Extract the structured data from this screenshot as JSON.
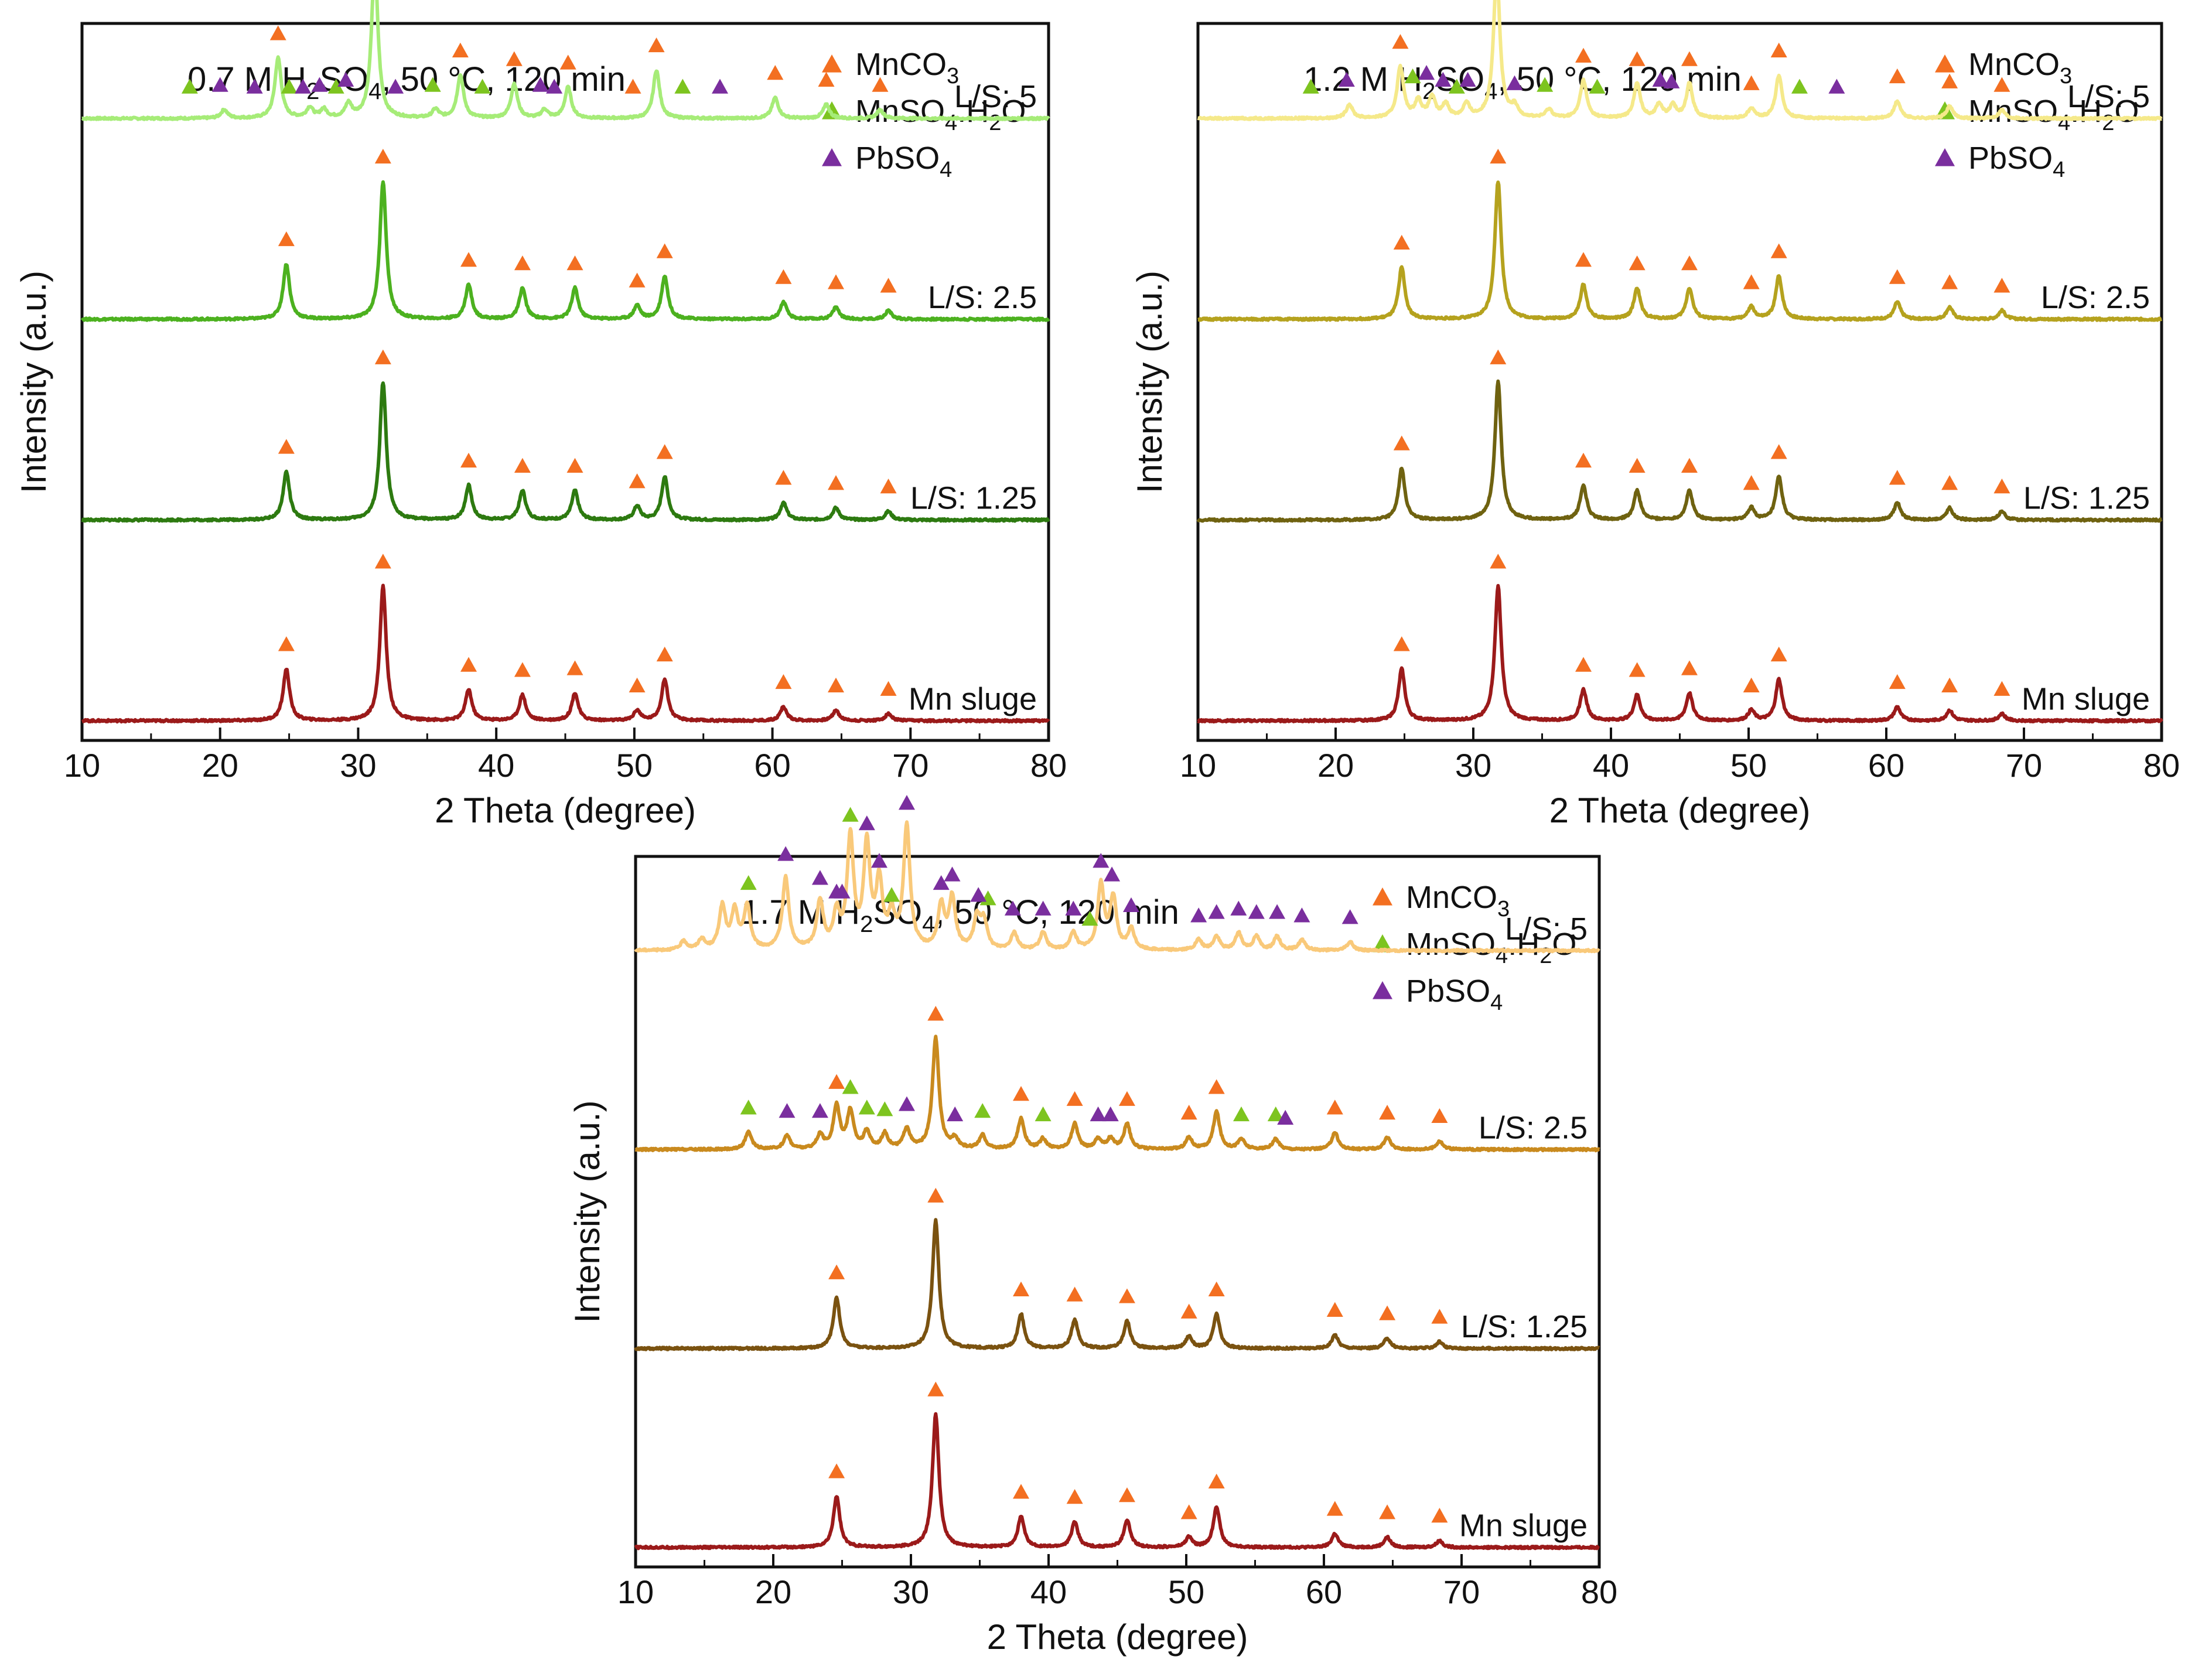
{
  "figure": {
    "description_hidden": false
  },
  "phases": [
    {
      "key": "mnco3",
      "label_main": "MnCO",
      "label_sub": "3",
      "label_rest": "",
      "color": "#F36F21"
    },
    {
      "key": "mnso4",
      "label_main": "MnSO",
      "label_sub": "4",
      "label_rest": ".H",
      "label_sub2": "2",
      "label_tail": "O",
      "color": "#7DC41F"
    },
    {
      "key": "pbso4",
      "label_main": "PbSO",
      "label_sub": "4",
      "label_rest": "",
      "color": "#7A2E9E"
    }
  ],
  "chart_data": [
    {
      "type": "line",
      "title_parts": [
        "0.7 M H",
        "2",
        "SO",
        "4",
        ", 50 °C, 120 min"
      ],
      "xlabel": "2 Theta (degree)",
      "ylabel": "Intensity (a.u.)",
      "xlim": [
        10,
        80
      ],
      "xticks": [
        "10",
        "20",
        "30",
        "40",
        "50",
        "60",
        "70",
        "80"
      ],
      "series": [
        {
          "name": "L/S: 5",
          "color": "#A6EC78",
          "peaks": [
            [
              24.2,
              0.35
            ],
            [
              31.2,
              0.9
            ],
            [
              37.4,
              0.25
            ],
            [
              41.3,
              0.2
            ],
            [
              45.2,
              0.18
            ],
            [
              51.6,
              0.28
            ],
            [
              60.2,
              0.12
            ],
            [
              63.9,
              0.08
            ],
            [
              67.8,
              0.05
            ],
            [
              20.3,
              0.05
            ],
            [
              26.5,
              0.06
            ],
            [
              27.5,
              0.05
            ],
            [
              29.3,
              0.08
            ],
            [
              43.5,
              0.05
            ],
            [
              35.6,
              0.05
            ]
          ],
          "markers": {
            "mnco3": [
              24.2,
              31.2,
              37.4,
              41.3,
              45.2,
              49.9,
              51.6,
              60.2,
              63.9,
              67.8
            ],
            "mnso4": [
              17.8,
              25.0,
              28.4,
              35.4,
              39.0,
              53.5
            ],
            "pbso4": [
              20.0,
              22.5,
              26.0,
              27.2,
              29.1,
              32.7,
              43.2,
              44.2,
              56.2
            ]
          }
        },
        {
          "name": "L/S: 2.5",
          "color": "#4CB11F",
          "peaks": [
            [
              24.8,
              0.32
            ],
            [
              31.8,
              0.8
            ],
            [
              38.0,
              0.2
            ],
            [
              41.9,
              0.18
            ],
            [
              45.7,
              0.18
            ],
            [
              50.2,
              0.08
            ],
            [
              52.2,
              0.25
            ],
            [
              60.8,
              0.1
            ],
            [
              64.6,
              0.07
            ],
            [
              68.4,
              0.05
            ]
          ],
          "markers": {
            "mnco3": [
              24.8,
              31.8,
              38.0,
              41.9,
              45.7,
              50.2,
              52.2,
              60.8,
              64.6,
              68.4
            ]
          }
        },
        {
          "name": "L/S: 1.25",
          "color": "#2D7A10",
          "peaks": [
            [
              24.8,
              0.28
            ],
            [
              31.8,
              0.8
            ],
            [
              38.0,
              0.2
            ],
            [
              41.9,
              0.17
            ],
            [
              45.7,
              0.17
            ],
            [
              50.2,
              0.08
            ],
            [
              52.2,
              0.25
            ],
            [
              60.8,
              0.1
            ],
            [
              64.6,
              0.07
            ],
            [
              68.4,
              0.05
            ]
          ],
          "markers": {
            "mnco3": [
              24.8,
              31.8,
              38.0,
              41.9,
              45.7,
              50.2,
              52.2,
              60.8,
              64.6,
              68.4
            ]
          }
        },
        {
          "name": "Mn sluge",
          "color": "#9B1A1A",
          "peaks": [
            [
              24.8,
              0.3
            ],
            [
              31.8,
              0.78
            ],
            [
              38.0,
              0.18
            ],
            [
              41.9,
              0.15
            ],
            [
              45.7,
              0.16
            ],
            [
              50.2,
              0.06
            ],
            [
              52.2,
              0.24
            ],
            [
              60.8,
              0.08
            ],
            [
              64.6,
              0.06
            ],
            [
              68.4,
              0.04
            ]
          ],
          "markers": {
            "mnco3": [
              24.8,
              31.8,
              38.0,
              41.9,
              45.7,
              50.2,
              52.2,
              60.8,
              64.6,
              68.4
            ]
          }
        }
      ]
    },
    {
      "type": "line",
      "title_parts": [
        "1.2 M H",
        "2",
        "SO",
        "4",
        ", 50 °C, 120 min"
      ],
      "xlabel": "2 Theta (degree)",
      "ylabel": "Intensity (a.u.)",
      "xlim": [
        10,
        80
      ],
      "xticks": [
        "10",
        "20",
        "30",
        "40",
        "50",
        "60",
        "70",
        "80"
      ],
      "series": [
        {
          "name": "L/S: 5",
          "color": "#F5E98A",
          "peaks": [
            [
              24.7,
              0.3
            ],
            [
              31.7,
              0.85
            ],
            [
              38.0,
              0.22
            ],
            [
              41.9,
              0.2
            ],
            [
              45.7,
              0.2
            ],
            [
              52.2,
              0.25
            ],
            [
              60.8,
              0.1
            ],
            [
              64.6,
              0.07
            ],
            [
              21.0,
              0.08
            ],
            [
              26.0,
              0.1
            ],
            [
              27.0,
              0.12
            ],
            [
              28.0,
              0.08
            ],
            [
              29.5,
              0.08
            ],
            [
              33.0,
              0.06
            ],
            [
              35.5,
              0.05
            ],
            [
              43.5,
              0.08
            ],
            [
              44.5,
              0.07
            ],
            [
              50.2,
              0.06
            ],
            [
              68.4,
              0.05
            ]
          ],
          "markers": {
            "mnco3": [
              24.7,
              31.7,
              38.0,
              41.9,
              45.7,
              50.2,
              52.2,
              60.8,
              64.6,
              68.4
            ],
            "mnso4": [
              18.2,
              25.6,
              28.8,
              35.2,
              39.0,
              53.7
            ],
            "pbso4": [
              20.8,
              26.6,
              27.8,
              29.6,
              33.0,
              43.6,
              44.4,
              56.4
            ]
          }
        },
        {
          "name": "L/S: 2.5",
          "color": "#B5A21E",
          "peaks": [
            [
              24.8,
              0.3
            ],
            [
              31.8,
              0.8
            ],
            [
              38.0,
              0.2
            ],
            [
              41.9,
              0.18
            ],
            [
              45.7,
              0.18
            ],
            [
              50.2,
              0.07
            ],
            [
              52.2,
              0.25
            ],
            [
              60.8,
              0.1
            ],
            [
              64.6,
              0.07
            ],
            [
              68.4,
              0.05
            ]
          ],
          "markers": {
            "mnco3": [
              24.8,
              31.8,
              38.0,
              41.9,
              45.7,
              50.2,
              52.2,
              60.8,
              64.6,
              68.4
            ]
          }
        },
        {
          "name": "L/S: 1.25",
          "color": "#6F6210",
          "peaks": [
            [
              24.8,
              0.3
            ],
            [
              31.8,
              0.8
            ],
            [
              38.0,
              0.2
            ],
            [
              41.9,
              0.17
            ],
            [
              45.7,
              0.17
            ],
            [
              50.2,
              0.07
            ],
            [
              52.2,
              0.25
            ],
            [
              60.8,
              0.1
            ],
            [
              64.6,
              0.07
            ],
            [
              68.4,
              0.05
            ]
          ],
          "markers": {
            "mnco3": [
              24.8,
              31.8,
              38.0,
              41.9,
              45.7,
              50.2,
              52.2,
              60.8,
              64.6,
              68.4
            ]
          }
        },
        {
          "name": "Mn sluge",
          "color": "#9B1A1A",
          "peaks": [
            [
              24.8,
              0.3
            ],
            [
              31.8,
              0.78
            ],
            [
              38.0,
              0.18
            ],
            [
              41.9,
              0.15
            ],
            [
              45.7,
              0.16
            ],
            [
              50.2,
              0.06
            ],
            [
              52.2,
              0.24
            ],
            [
              60.8,
              0.08
            ],
            [
              64.6,
              0.06
            ],
            [
              68.4,
              0.04
            ]
          ],
          "markers": {
            "mnco3": [
              24.8,
              31.8,
              38.0,
              41.9,
              45.7,
              50.2,
              52.2,
              60.8,
              64.6,
              68.4
            ]
          }
        }
      ]
    },
    {
      "type": "line",
      "title_parts": [
        "1.7 M H",
        "2",
        "SO",
        "4",
        ", 50 °C, 120 min"
      ],
      "xlabel": "2 Theta (degree)",
      "ylabel": "Intensity (a.u.)",
      "xlim": [
        10,
        80
      ],
      "xticks": [
        "10",
        "20",
        "30",
        "40",
        "50",
        "60",
        "70",
        "80"
      ],
      "series": [
        {
          "name": "L/S: 5",
          "color": "#F9C97A",
          "peaks": [
            [
              16.3,
              0.25
            ],
            [
              17.2,
              0.22
            ],
            [
              18.1,
              0.25
            ],
            [
              20.9,
              0.42
            ],
            [
              23.4,
              0.28
            ],
            [
              24.6,
              0.2
            ],
            [
              25.6,
              0.65
            ],
            [
              26.8,
              0.6
            ],
            [
              27.7,
              0.38
            ],
            [
              28.6,
              0.18
            ],
            [
              29.7,
              0.72
            ],
            [
              32.2,
              0.25
            ],
            [
              33.0,
              0.3
            ],
            [
              34.8,
              0.18
            ],
            [
              35.3,
              0.16
            ],
            [
              37.5,
              0.1
            ],
            [
              39.6,
              0.1
            ],
            [
              41.8,
              0.1
            ],
            [
              43.8,
              0.38
            ],
            [
              44.7,
              0.3
            ],
            [
              46.0,
              0.12
            ],
            [
              50.9,
              0.06
            ],
            [
              52.2,
              0.08
            ],
            [
              53.8,
              0.1
            ],
            [
              55.1,
              0.08
            ],
            [
              56.6,
              0.08
            ],
            [
              58.4,
              0.06
            ],
            [
              61.9,
              0.05
            ],
            [
              14.8,
              0.06
            ],
            [
              13.5,
              0.05
            ]
          ],
          "markers": {
            "mnso4": [
              18.2,
              25.6,
              28.6,
              35.6,
              43.0
            ],
            "pbso4": [
              20.9,
              23.4,
              24.6,
              25.0,
              26.8,
              27.7,
              29.7,
              32.2,
              33.0,
              34.9,
              37.4,
              39.6,
              41.8,
              43.8,
              44.6,
              46.0,
              50.9,
              52.2,
              53.8,
              55.1,
              56.6,
              58.4,
              61.9
            ]
          }
        },
        {
          "name": "L/S: 2.5",
          "color": "#C98A1E",
          "peaks": [
            [
              18.2,
              0.1
            ],
            [
              21.0,
              0.08
            ],
            [
              23.4,
              0.08
            ],
            [
              24.6,
              0.25
            ],
            [
              25.6,
              0.22
            ],
            [
              26.8,
              0.1
            ],
            [
              28.1,
              0.09
            ],
            [
              29.7,
              0.12
            ],
            [
              31.8,
              0.65
            ],
            [
              33.2,
              0.06
            ],
            [
              35.2,
              0.08
            ],
            [
              38.0,
              0.18
            ],
            [
              39.6,
              0.06
            ],
            [
              41.9,
              0.15
            ],
            [
              43.6,
              0.06
            ],
            [
              44.5,
              0.06
            ],
            [
              45.7,
              0.15
            ],
            [
              50.2,
              0.07
            ],
            [
              52.2,
              0.22
            ],
            [
              54.0,
              0.06
            ],
            [
              56.5,
              0.06
            ],
            [
              60.8,
              0.1
            ],
            [
              64.6,
              0.07
            ],
            [
              68.4,
              0.05
            ]
          ],
          "markers": {
            "mnco3": [
              24.6,
              31.8,
              38.0,
              41.9,
              45.7,
              50.2,
              52.2,
              60.8,
              64.6,
              68.4
            ],
            "mnso4": [
              18.2,
              25.6,
              26.8,
              28.1,
              35.2,
              39.6,
              54.0,
              56.5
            ],
            "pbso4": [
              21.0,
              23.4,
              29.7,
              33.2,
              43.6,
              44.5,
              57.2
            ]
          }
        },
        {
          "name": "L/S: 1.25",
          "color": "#7A5210",
          "peaks": [
            [
              24.6,
              0.3
            ],
            [
              31.8,
              0.75
            ],
            [
              38.0,
              0.2
            ],
            [
              41.9,
              0.17
            ],
            [
              45.7,
              0.16
            ],
            [
              50.2,
              0.07
            ],
            [
              52.2,
              0.2
            ],
            [
              60.8,
              0.08
            ],
            [
              64.6,
              0.06
            ],
            [
              68.4,
              0.04
            ]
          ],
          "markers": {
            "mnco3": [
              24.6,
              31.8,
              38.0,
              41.9,
              45.7,
              50.2,
              52.2,
              60.8,
              64.6,
              68.4
            ]
          }
        },
        {
          "name": "Mn sluge",
          "color": "#9B1A1A",
          "peaks": [
            [
              24.6,
              0.3
            ],
            [
              31.8,
              0.78
            ],
            [
              38.0,
              0.18
            ],
            [
              41.9,
              0.15
            ],
            [
              45.7,
              0.16
            ],
            [
              50.2,
              0.06
            ],
            [
              52.2,
              0.24
            ],
            [
              60.8,
              0.08
            ],
            [
              64.6,
              0.06
            ],
            [
              68.4,
              0.04
            ]
          ],
          "markers": {
            "mnco3": [
              24.6,
              31.8,
              38.0,
              41.9,
              45.7,
              50.2,
              52.2,
              60.8,
              64.6,
              68.4
            ]
          }
        }
      ]
    }
  ]
}
